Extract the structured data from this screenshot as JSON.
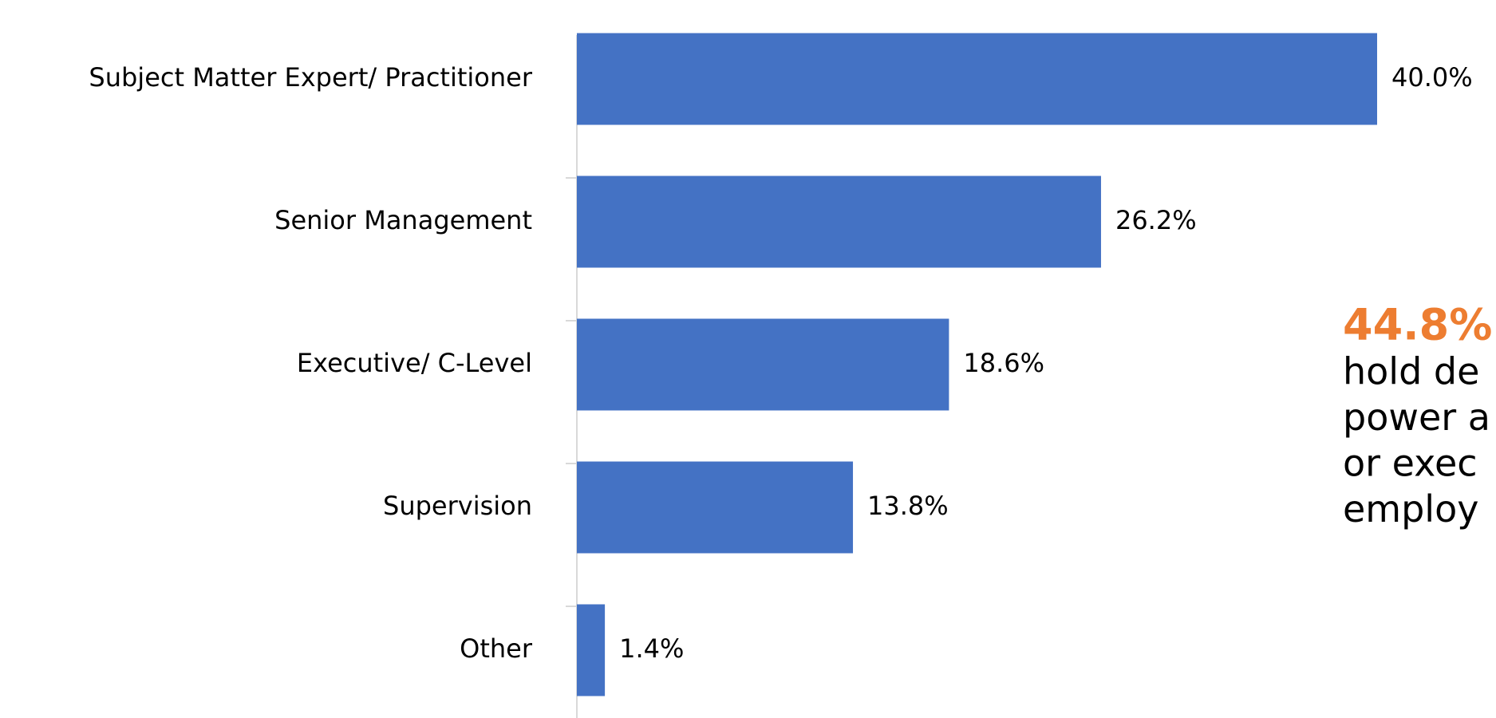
{
  "chart_data": {
    "type": "bar",
    "orientation": "horizontal",
    "categories": [
      "Subject Matter Expert/ Practitioner",
      "Senior Management",
      "Executive/ C-Level",
      "Supervision",
      "Other"
    ],
    "values": [
      40,
      26.2,
      18.6,
      13.8,
      1.4
    ],
    "value_labels": [
      "40.0%",
      "26.2%",
      "18.6%",
      "13.8%",
      "1.4%"
    ],
    "color": "#4472c4",
    "annotation": {
      "headline": "44.8%",
      "headline_color": "#ed7d31",
      "lines": [
        "hold de",
        "power a",
        "or exec",
        "employ"
      ]
    }
  }
}
